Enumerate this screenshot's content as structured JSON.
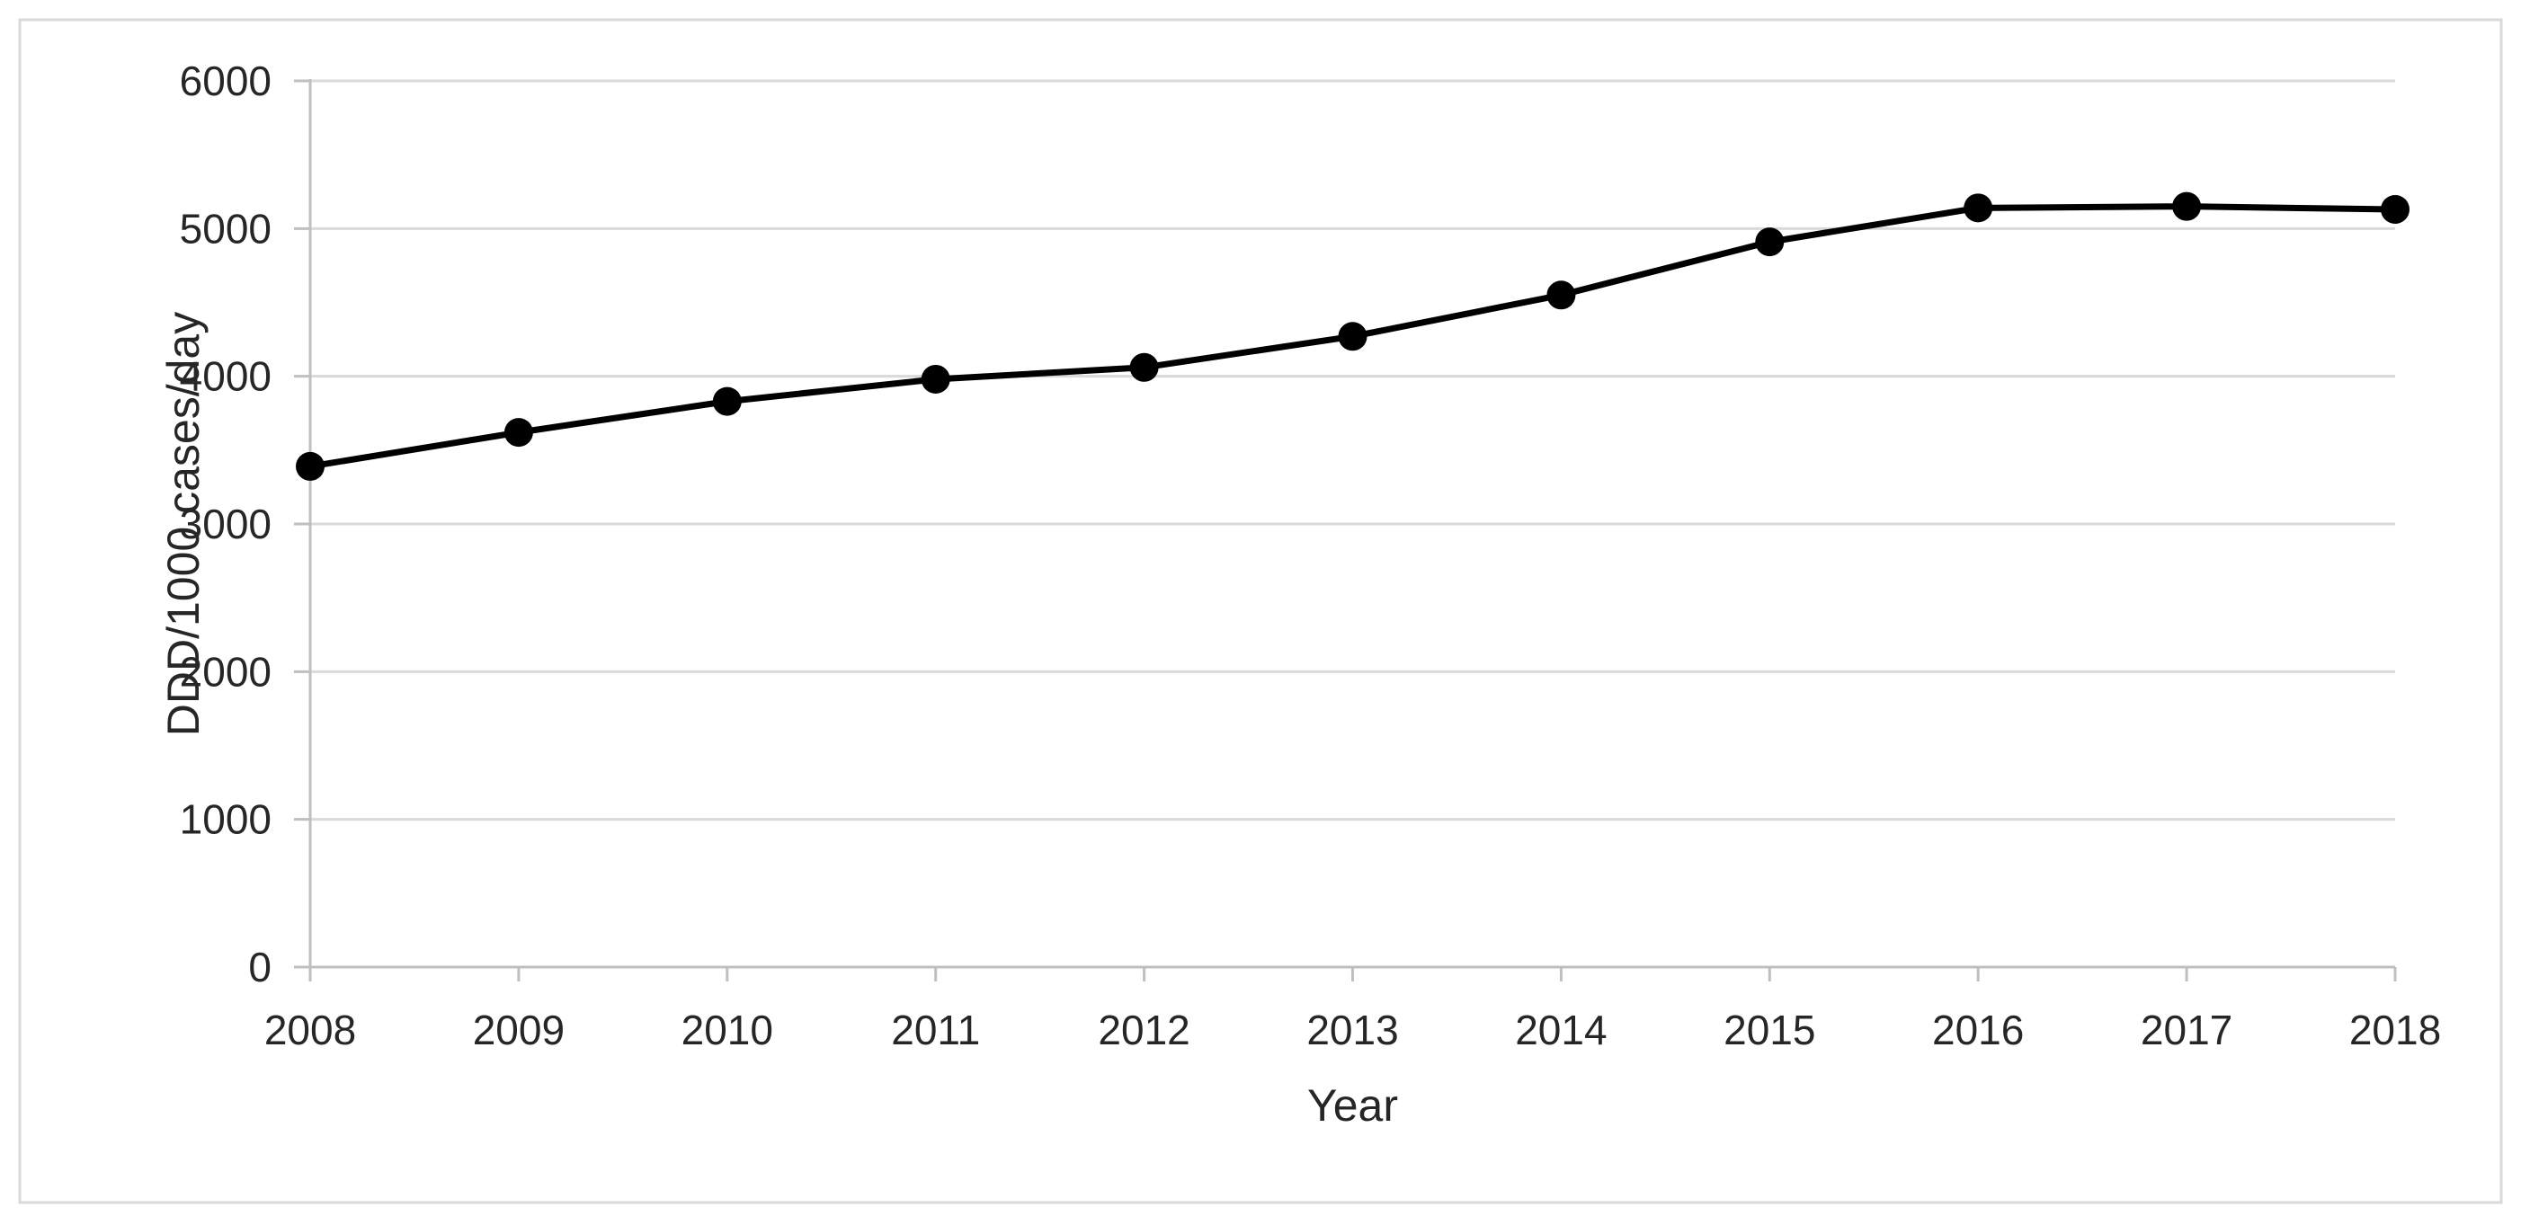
{
  "figure": {
    "background_color": "#ffffff",
    "border_color": "#d9d9d9"
  },
  "chart_data": {
    "type": "line",
    "title": "",
    "xlabel": "Year",
    "ylabel": "DDD/1000 cases/day",
    "x": [
      2008,
      2009,
      2010,
      2011,
      2012,
      2013,
      2014,
      2015,
      2016,
      2017,
      2018
    ],
    "series": [
      {
        "name": "DDD/1000 cases/day",
        "values": [
          3390,
          3620,
          3830,
          3980,
          4060,
          4270,
          4550,
          4910,
          5140,
          5150,
          5130
        ]
      }
    ],
    "ylim": [
      0,
      6000
    ],
    "yticks": [
      0,
      1000,
      2000,
      3000,
      4000,
      5000,
      6000
    ],
    "grid": "horizontal-only",
    "legend": "none",
    "marker": "circle",
    "style": {
      "line_color": "#000000",
      "marker_color": "#000000",
      "gridline_color": "#d9d9d9",
      "axis_line_color": "#bfbfbf",
      "tick_color": "#bfbfbf",
      "tick_label_color": "#262626",
      "axis_title_color": "#262626"
    }
  }
}
